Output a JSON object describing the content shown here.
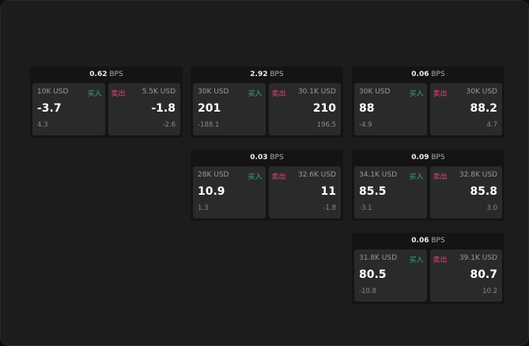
{
  "unit": "BPS",
  "buy_label": "买入",
  "sell_label": "卖出",
  "colors": {
    "buy": "#2fb36b",
    "sell": "#e0457b"
  },
  "cards": [
    {
      "spread": "0.62",
      "bid_size": "10K USD",
      "bid": "-3.7",
      "bid_change": "4.3",
      "ask_size": "5.5K USD",
      "ask": "-1.8",
      "ask_change": "-2.6"
    },
    {
      "spread": "2.92",
      "bid_size": "30K USD",
      "bid": "201",
      "bid_change": "-188.1",
      "ask_size": "30.1K USD",
      "ask": "210",
      "ask_change": "196.5"
    },
    {
      "spread": "0.06",
      "bid_size": "30K USD",
      "bid": "88",
      "bid_change": "-4.9",
      "ask_size": "30K USD",
      "ask": "88.2",
      "ask_change": "4.7"
    },
    {
      "spread": "0.03",
      "bid_size": "28K USD",
      "bid": "10.9",
      "bid_change": "1.3",
      "ask_size": "32.6K USD",
      "ask": "11",
      "ask_change": "-1.8"
    },
    {
      "spread": "0.09",
      "bid_size": "34.1K USD",
      "bid": "85.5",
      "bid_change": "-3.1",
      "ask_size": "32.8K USD",
      "ask": "85.8",
      "ask_change": "3.0"
    },
    {
      "spread": "0.06",
      "bid_size": "31.8K USD",
      "bid": "80.5",
      "bid_change": "-10.8",
      "ask_size": "39.1K USD",
      "ask": "80.7",
      "ask_change": "10.2"
    }
  ]
}
